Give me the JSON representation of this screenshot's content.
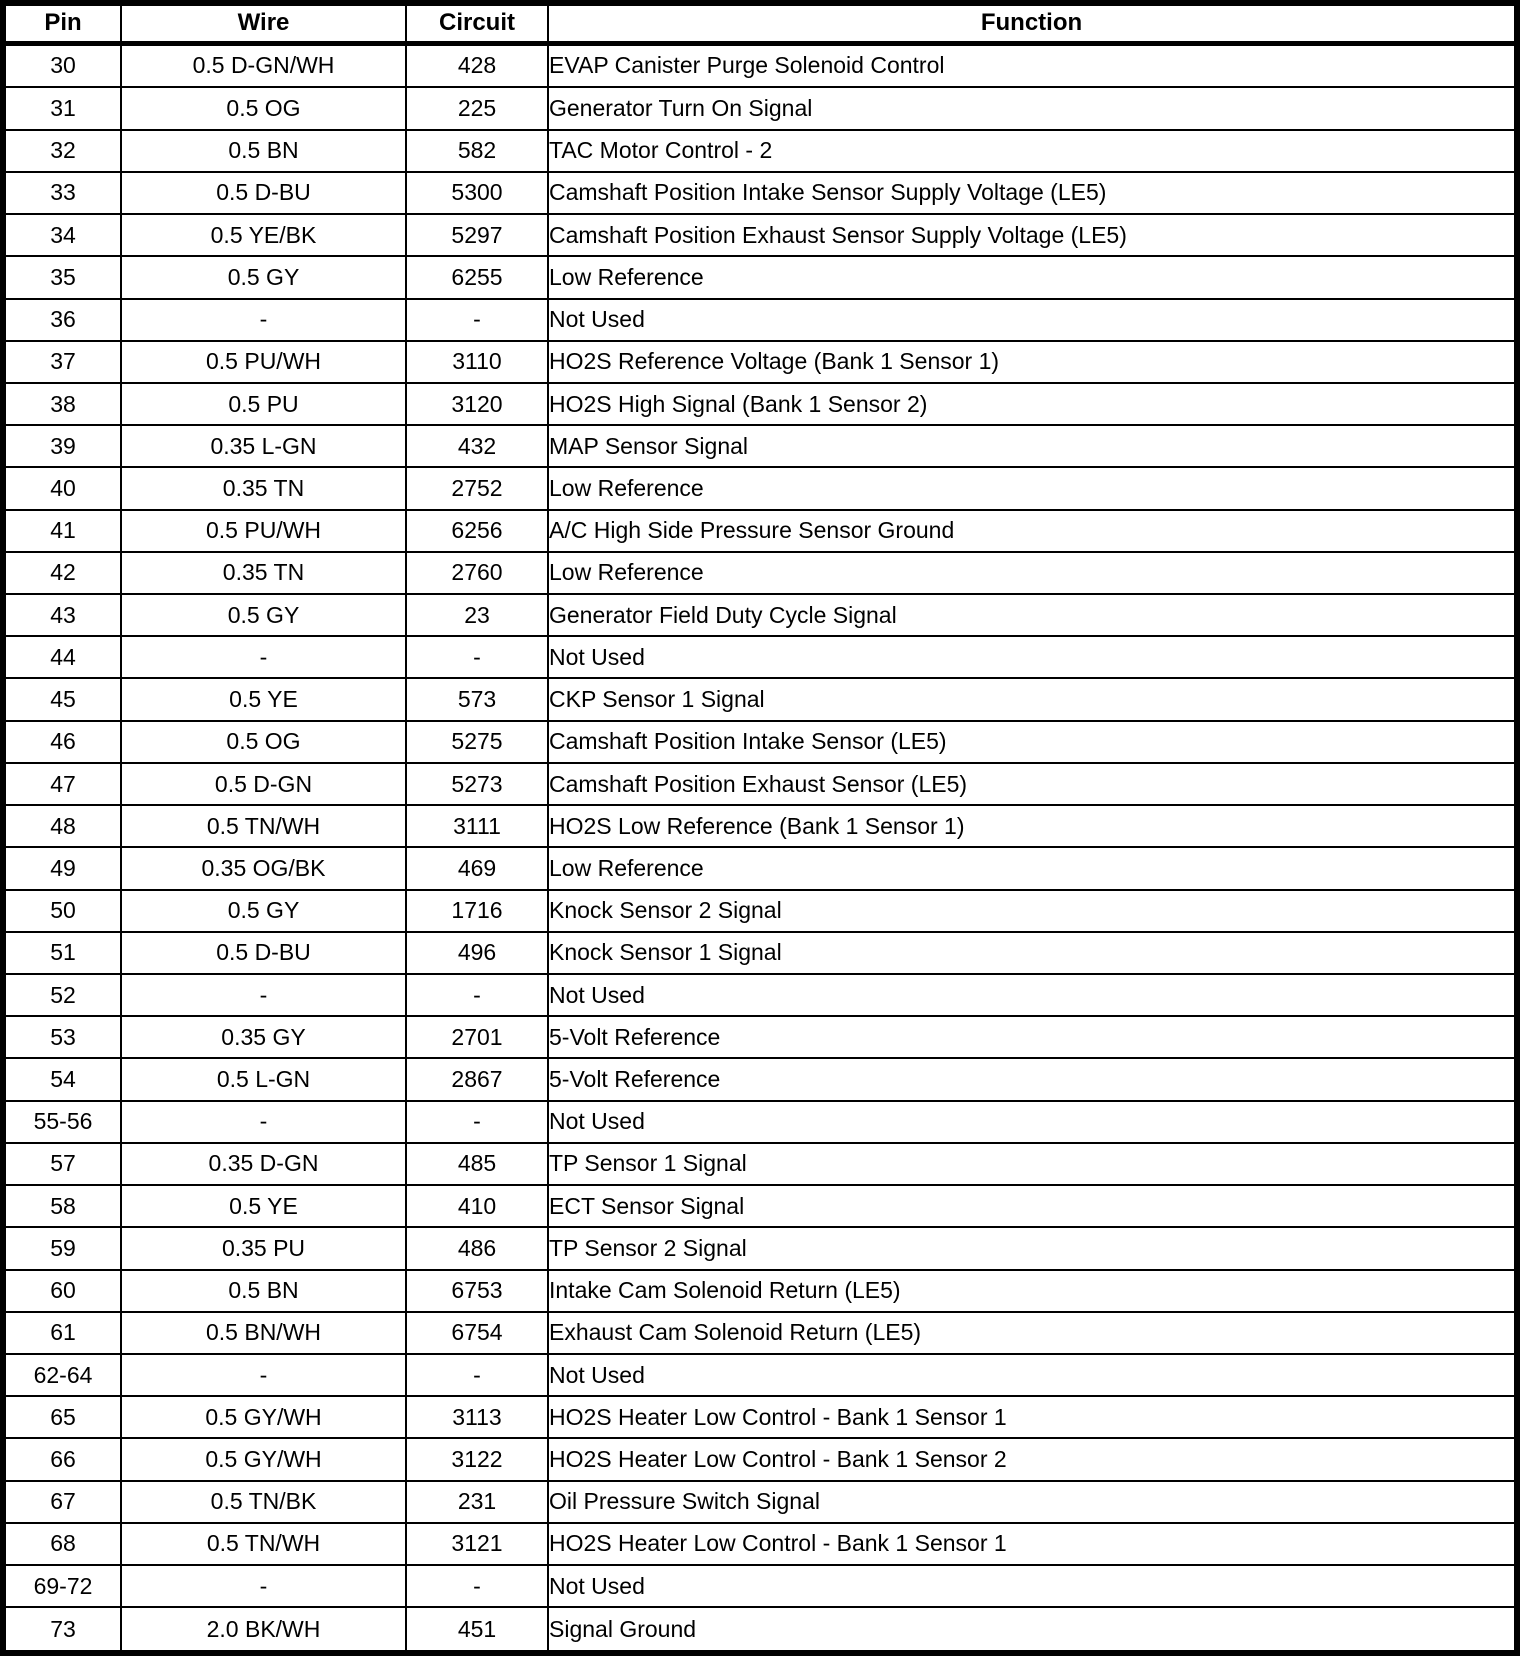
{
  "page": {
    "background_color": "#ffffff",
    "border_color": "#000000",
    "text_color": "#000000"
  },
  "table": {
    "headers": [
      "Pin",
      "Wire",
      "Circuit",
      "Function"
    ],
    "rows": [
      [
        "30",
        "0.5 D-GN/WH",
        "428",
        "EVAP Canister Purge Solenoid Control"
      ],
      [
        "31",
        "0.5 OG",
        "225",
        "Generator Turn On Signal"
      ],
      [
        "32",
        "0.5 BN",
        "582",
        "TAC Motor Control - 2"
      ],
      [
        "33",
        "0.5 D-BU",
        "5300",
        "Camshaft Position Intake Sensor Supply Voltage (LE5)"
      ],
      [
        "34",
        "0.5 YE/BK",
        "5297",
        "Camshaft Position Exhaust Sensor Supply Voltage (LE5)"
      ],
      [
        "35",
        "0.5 GY",
        "6255",
        "Low Reference"
      ],
      [
        "36",
        "-",
        "-",
        "Not Used"
      ],
      [
        "37",
        "0.5 PU/WH",
        "3110",
        "HO2S Reference Voltage (Bank 1 Sensor 1)"
      ],
      [
        "38",
        "0.5 PU",
        "3120",
        "HO2S High Signal (Bank 1 Sensor 2)"
      ],
      [
        "39",
        "0.35 L-GN",
        "432",
        "MAP Sensor Signal"
      ],
      [
        "40",
        "0.35 TN",
        "2752",
        "Low Reference"
      ],
      [
        "41",
        "0.5 PU/WH",
        "6256",
        "A/C High Side Pressure Sensor Ground"
      ],
      [
        "42",
        "0.35 TN",
        "2760",
        "Low Reference"
      ],
      [
        "43",
        "0.5 GY",
        "23",
        "Generator Field Duty Cycle Signal"
      ],
      [
        "44",
        "-",
        "-",
        "Not Used"
      ],
      [
        "45",
        "0.5 YE",
        "573",
        "CKP Sensor 1 Signal"
      ],
      [
        "46",
        "0.5 OG",
        "5275",
        "Camshaft Position Intake Sensor (LE5)"
      ],
      [
        "47",
        "0.5 D-GN",
        "5273",
        "Camshaft Position Exhaust Sensor (LE5)"
      ],
      [
        "48",
        "0.5 TN/WH",
        "3111",
        "HO2S Low Reference (Bank 1 Sensor 1)"
      ],
      [
        "49",
        "0.35 OG/BK",
        "469",
        "Low Reference"
      ],
      [
        "50",
        "0.5 GY",
        "1716",
        "Knock Sensor 2 Signal"
      ],
      [
        "51",
        "0.5 D-BU",
        "496",
        "Knock Sensor 1 Signal"
      ],
      [
        "52",
        "-",
        "-",
        "Not Used"
      ],
      [
        "53",
        "0.35 GY",
        "2701",
        "5-Volt Reference"
      ],
      [
        "54",
        "0.5 L-GN",
        "2867",
        "5-Volt Reference"
      ],
      [
        "55-56",
        "-",
        "-",
        "Not Used"
      ],
      [
        "57",
        "0.35 D-GN",
        "485",
        "TP Sensor 1 Signal"
      ],
      [
        "58",
        "0.5 YE",
        "410",
        "ECT Sensor Signal"
      ],
      [
        "59",
        "0.35 PU",
        "486",
        "TP Sensor 2 Signal"
      ],
      [
        "60",
        "0.5 BN",
        "6753",
        "Intake Cam Solenoid Return (LE5)"
      ],
      [
        "61",
        "0.5 BN/WH",
        "6754",
        "Exhaust Cam Solenoid Return (LE5)"
      ],
      [
        "62-64",
        "-",
        "-",
        "Not Used"
      ],
      [
        "65",
        "0.5 GY/WH",
        "3113",
        "HO2S Heater Low Control - Bank 1 Sensor 1"
      ],
      [
        "66",
        "0.5 GY/WH",
        "3122",
        "HO2S Heater Low Control - Bank 1 Sensor 2"
      ],
      [
        "67",
        "0.5 TN/BK",
        "231",
        "Oil Pressure Switch Signal"
      ],
      [
        "68",
        "0.5 TN/WH",
        "3121",
        "HO2S Heater Low Control - Bank 1 Sensor 1"
      ],
      [
        "69-72",
        "-",
        "-",
        "Not Used"
      ],
      [
        "73",
        "2.0 BK/WH",
        "451",
        "Signal Ground"
      ]
    ]
  }
}
